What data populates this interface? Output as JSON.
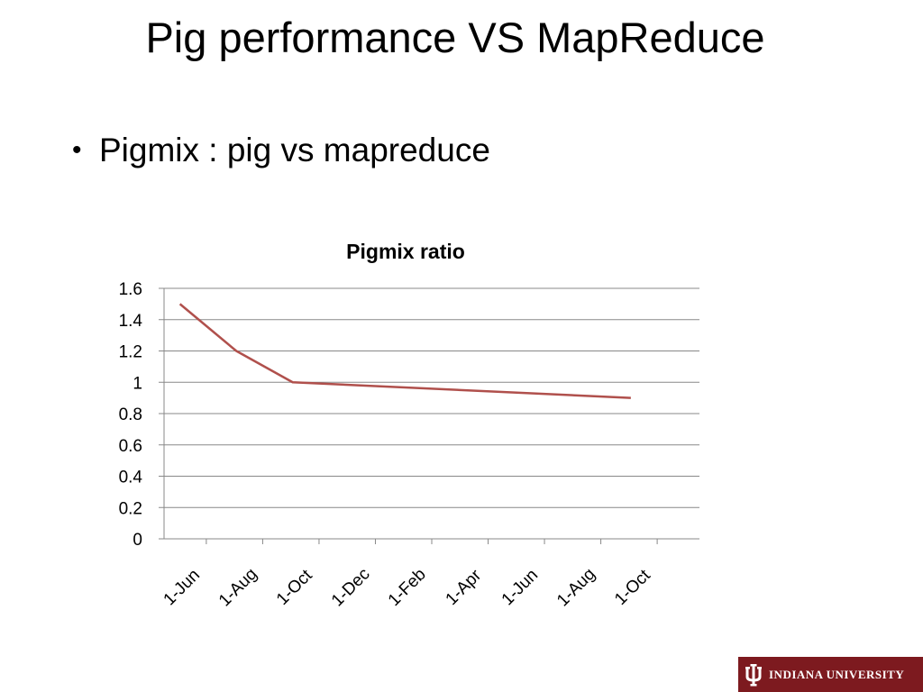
{
  "slide": {
    "title": "Pig performance VS MapReduce",
    "bullets": [
      {
        "symbol": "•",
        "text": "Pigmix : pig vs mapreduce"
      }
    ]
  },
  "logo": {
    "text": "INDIANA UNIVERSITY",
    "icon": "iu-trident-icon",
    "background": "#7d1a1f"
  },
  "chart_data": {
    "type": "line",
    "title": "Pigmix ratio",
    "xlabel": "",
    "ylabel": "",
    "categories": [
      "1-Jun",
      "1-Aug",
      "1-Oct",
      "1-Dec",
      "1-Feb",
      "1-Apr",
      "1-Jun",
      "1-Aug",
      "1-Oct"
    ],
    "x": [
      "2008-06-01",
      "2008-08-01",
      "2008-10-01",
      "2009-10-01"
    ],
    "series": [
      {
        "values": [
          1.5,
          1.2,
          1.0,
          0.9
        ],
        "color": "#b0504c"
      }
    ],
    "ylim": [
      0,
      1.6
    ],
    "yticks": [
      "0",
      "0.2",
      "0.4",
      "0.6",
      "0.8",
      "1",
      "1.2",
      "1.4",
      "1.6"
    ],
    "grid": true,
    "gridline_color": "#888888",
    "legend": "none"
  }
}
